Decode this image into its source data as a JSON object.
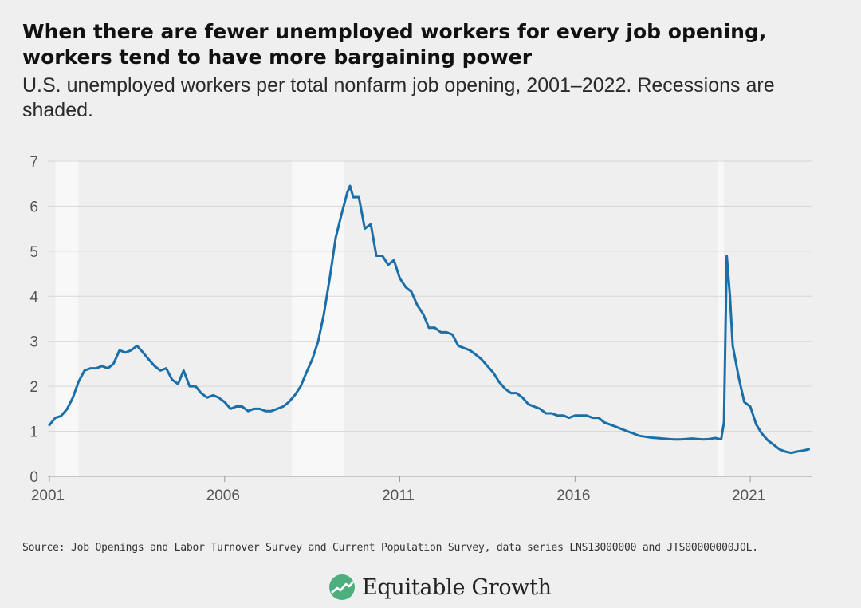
{
  "title": "When there are fewer unemployed workers for every job opening, workers tend to have more bargaining power",
  "subtitle": "U.S. unemployed workers per total nonfarm job opening, 2001–2022. Recessions are shaded.",
  "source": "Source: Job Openings and Labor Turnover Survey and Current Population Survey, data series LNS13000000 and JTS00000000JOL.",
  "logo_text": "Equitable Growth",
  "colors": {
    "background": "#efefef",
    "line": "#1b6fa8",
    "recession": "#f8f8f8",
    "grid": "#d6d6d6",
    "logo_green": "#4caf7d"
  },
  "chart_data": {
    "type": "line",
    "title": "",
    "xlabel": "",
    "ylabel": "",
    "xlim": [
      2001.0,
      2022.75
    ],
    "ylim": [
      0,
      7
    ],
    "yticks": [
      "0",
      "1",
      "2",
      "3",
      "4",
      "5",
      "6",
      "7"
    ],
    "xticks": [
      "2001",
      "2006",
      "2011",
      "2016",
      "2021"
    ],
    "grid": "horizontal",
    "recessions": [
      [
        2001.17,
        2001.83
      ],
      [
        2007.92,
        2009.42
      ],
      [
        2020.08,
        2020.25
      ]
    ],
    "series": [
      {
        "x": [
          2001.0,
          2001.17,
          2001.33,
          2001.5,
          2001.67,
          2001.83,
          2002.0,
          2002.17,
          2002.33,
          2002.5,
          2002.67,
          2002.83,
          2003.0,
          2003.17,
          2003.33,
          2003.5,
          2003.67,
          2003.83,
          2004.0,
          2004.17,
          2004.33,
          2004.5,
          2004.67,
          2004.83,
          2005.0,
          2005.17,
          2005.33,
          2005.5,
          2005.67,
          2005.83,
          2006.0,
          2006.17,
          2006.33,
          2006.5,
          2006.67,
          2006.83,
          2007.0,
          2007.17,
          2007.33,
          2007.5,
          2007.67,
          2007.83,
          2008.0,
          2008.17,
          2008.33,
          2008.5,
          2008.67,
          2008.83,
          2009.0,
          2009.17,
          2009.33,
          2009.5,
          2009.58,
          2009.67,
          2009.83,
          2010.0,
          2010.17,
          2010.33,
          2010.5,
          2010.67,
          2010.83,
          2011.0,
          2011.17,
          2011.33,
          2011.5,
          2011.67,
          2011.83,
          2012.0,
          2012.17,
          2012.33,
          2012.5,
          2012.67,
          2012.83,
          2013.0,
          2013.17,
          2013.33,
          2013.5,
          2013.67,
          2013.83,
          2014.0,
          2014.17,
          2014.33,
          2014.5,
          2014.67,
          2014.83,
          2015.0,
          2015.17,
          2015.33,
          2015.5,
          2015.67,
          2015.83,
          2016.0,
          2016.17,
          2016.33,
          2016.5,
          2016.67,
          2016.83,
          2017.0,
          2017.17,
          2017.33,
          2017.5,
          2017.67,
          2017.83,
          2018.0,
          2018.17,
          2018.33,
          2018.5,
          2018.67,
          2018.83,
          2019.0,
          2019.17,
          2019.33,
          2019.5,
          2019.67,
          2019.83,
          2020.0,
          2020.17,
          2020.25,
          2020.33,
          2020.42,
          2020.5,
          2020.67,
          2020.83,
          2021.0,
          2021.17,
          2021.33,
          2021.5,
          2021.67,
          2021.83,
          2022.0,
          2022.17,
          2022.33,
          2022.5,
          2022.67
        ],
        "y": [
          1.14,
          1.3,
          1.34,
          1.49,
          1.75,
          2.1,
          2.35,
          2.4,
          2.4,
          2.45,
          2.4,
          2.5,
          2.8,
          2.75,
          2.8,
          2.9,
          2.75,
          2.6,
          2.45,
          2.35,
          2.4,
          2.15,
          2.05,
          2.35,
          2.0,
          2.0,
          1.85,
          1.75,
          1.8,
          1.75,
          1.65,
          1.5,
          1.55,
          1.55,
          1.45,
          1.5,
          1.5,
          1.45,
          1.45,
          1.5,
          1.55,
          1.65,
          1.8,
          2.0,
          2.3,
          2.6,
          3.0,
          3.6,
          4.4,
          5.3,
          5.8,
          6.3,
          6.45,
          6.2,
          6.2,
          5.5,
          5.6,
          4.9,
          4.9,
          4.7,
          4.8,
          4.4,
          4.2,
          4.1,
          3.8,
          3.6,
          3.3,
          3.3,
          3.2,
          3.2,
          3.15,
          2.9,
          2.85,
          2.8,
          2.7,
          2.6,
          2.45,
          2.3,
          2.1,
          1.95,
          1.85,
          1.85,
          1.75,
          1.6,
          1.55,
          1.5,
          1.4,
          1.4,
          1.35,
          1.35,
          1.3,
          1.35,
          1.35,
          1.35,
          1.3,
          1.3,
          1.2,
          1.15,
          1.1,
          1.05,
          1.0,
          0.95,
          0.9,
          0.88,
          0.86,
          0.85,
          0.84,
          0.83,
          0.82,
          0.82,
          0.83,
          0.84,
          0.83,
          0.82,
          0.83,
          0.85,
          0.82,
          1.2,
          4.9,
          4.0,
          2.9,
          2.2,
          1.65,
          1.55,
          1.15,
          0.95,
          0.8,
          0.7,
          0.6,
          0.55,
          0.52,
          0.55,
          0.57,
          0.6
        ]
      }
    ]
  }
}
